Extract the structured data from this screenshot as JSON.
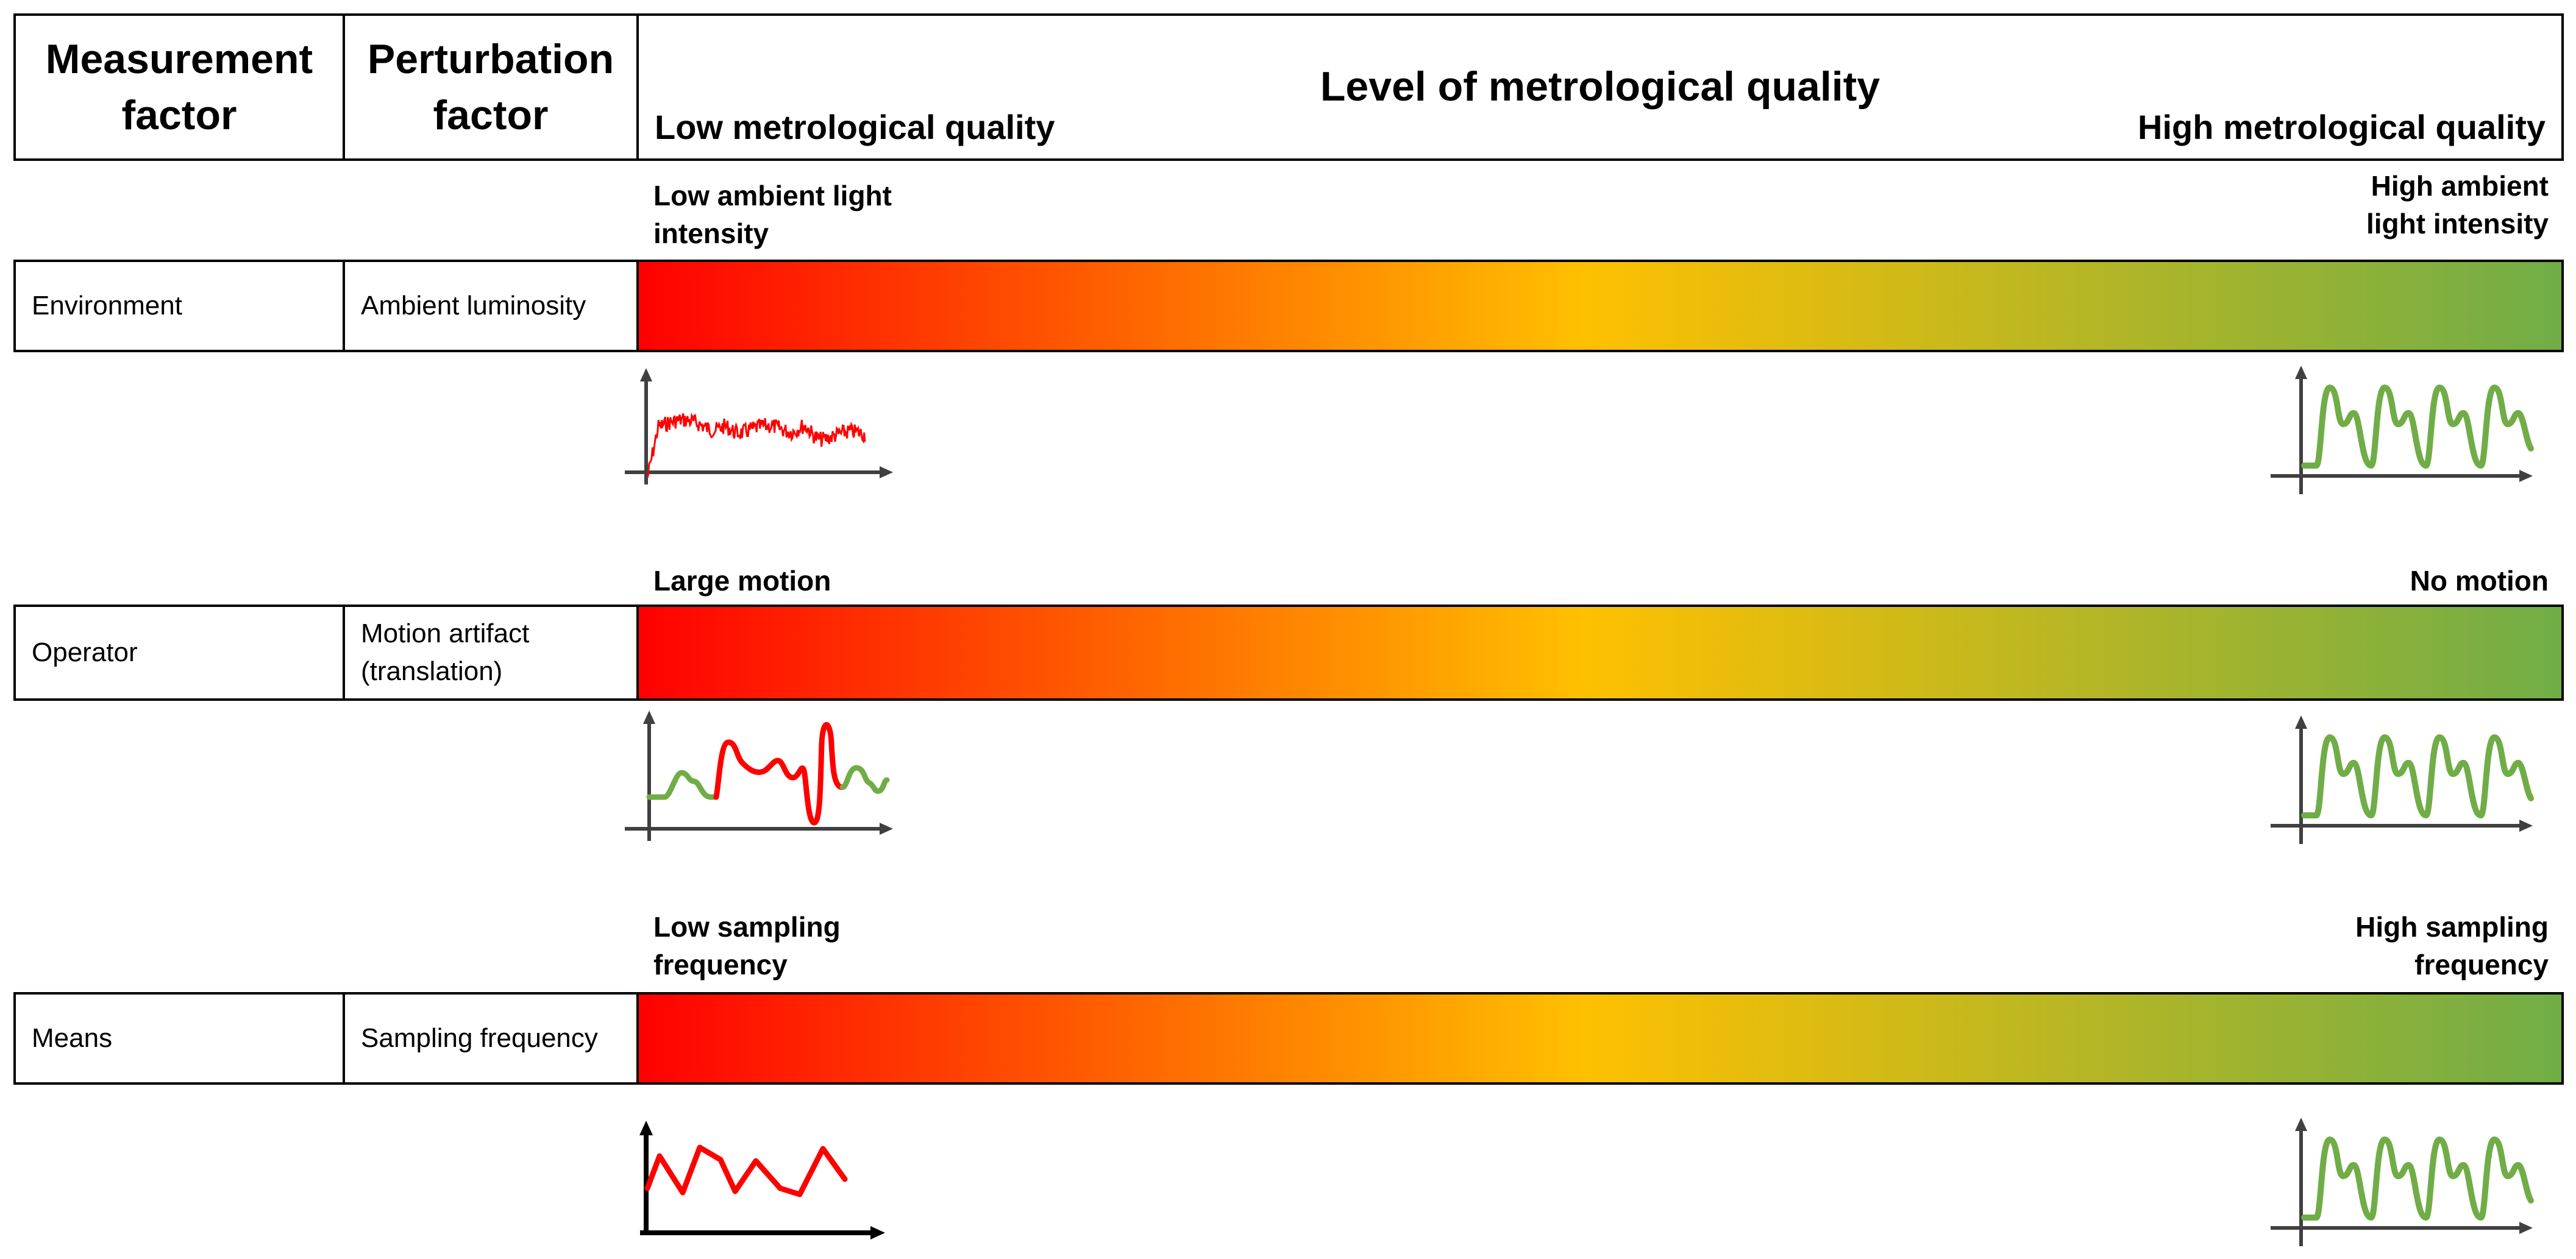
{
  "header": {
    "measurement_factor": "Measurement\nfactor",
    "perturbation_factor": "Perturbation\nfactor",
    "level_title": "Level of metrological quality",
    "low_quality": "Low metrological quality",
    "high_quality": "High metrological quality"
  },
  "colors": {
    "low": "#ff0000",
    "mid": "#ffc000",
    "high": "#70ad47",
    "axis": "#404040"
  },
  "rows": [
    {
      "measurement_factor": "Environment",
      "perturbation_factor": "Ambient luminosity",
      "low_label": "Low ambient light\nintensity",
      "high_label": "High ambient\nlight intensity",
      "low_signal": "noisy-ppg-icon",
      "high_signal": "clean-ppg-icon"
    },
    {
      "measurement_factor": "Operator",
      "perturbation_factor": "Motion artifact\n(translation)",
      "low_label": "Large motion",
      "high_label": "No motion",
      "low_signal": "motion-artifact-ppg-icon",
      "high_signal": "clean-ppg-icon"
    },
    {
      "measurement_factor": "Means",
      "perturbation_factor": "Sampling frequency",
      "low_label": "Low sampling\nfrequency",
      "high_label": "High sampling\nfrequency",
      "low_signal": "undersampled-ppg-icon",
      "high_signal": "clean-ppg-icon"
    }
  ]
}
